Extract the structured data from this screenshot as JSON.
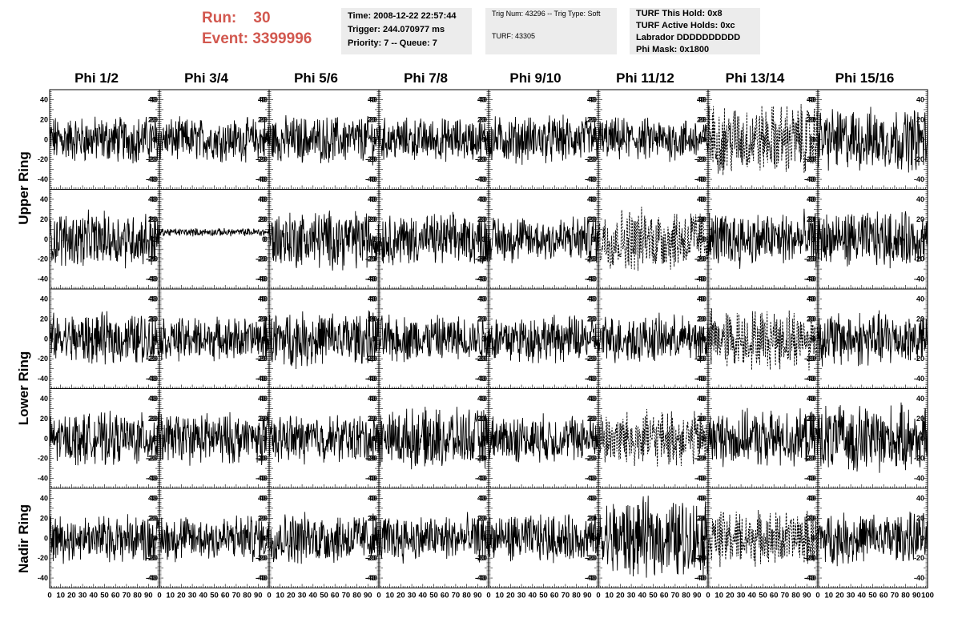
{
  "header": {
    "run_label": "Run:",
    "run_value": "30",
    "event_label": "Event:",
    "event_value": "3399996",
    "box1": [
      "Time: 2008-12-22 22:57:44",
      "Trigger: 244.070977 ms",
      "Priority: 7 -- Queue: 7"
    ],
    "box2_line1": "Trig Num: 43296 -- Trig Type: Soft",
    "box2_line2": "TURF: 43305",
    "box3": [
      "TURF This Hold: 0x8",
      "TURF Active Holds: 0xc",
      "Labrador DDDDDDDDDD",
      "Phi Mask: 0x1800"
    ]
  },
  "colors": {
    "accent": "#d2584f",
    "info_bg": "#ececec",
    "trace": "#000000"
  },
  "columns": [
    "Phi 1/2",
    "Phi 3/4",
    "Phi 5/6",
    "Phi 7/8",
    "Phi 9/10",
    "Phi 11/12",
    "Phi 13/14",
    "Phi 15/16"
  ],
  "ring_labels": [
    "Upper Ring",
    "Lower Ring",
    "Nadir Ring"
  ],
  "chart_data": {
    "type": "line",
    "layout": "5 rows x 8 columns of waveform panels",
    "columns": [
      "Phi 1/2",
      "Phi 3/4",
      "Phi 5/6",
      "Phi 7/8",
      "Phi 9/10",
      "Phi 11/12",
      "Phi 13/14",
      "Phi 15/16"
    ],
    "row_groups": [
      {
        "label": "Upper Ring",
        "rows": [
          0,
          1
        ]
      },
      {
        "label": "Lower Ring",
        "rows": [
          2,
          3
        ]
      },
      {
        "label": "Nadir Ring",
        "rows": [
          4
        ]
      }
    ],
    "xlim": [
      0,
      100
    ],
    "ylim": [
      -50,
      50
    ],
    "x_ticks": [
      0,
      10,
      20,
      30,
      40,
      50,
      60,
      70,
      80,
      90,
      100
    ],
    "y_ticks": [
      -40,
      -20,
      0,
      20,
      40
    ],
    "y_tick_labels": [
      "-40",
      "-20",
      "0",
      "20",
      "40"
    ],
    "n_points": 250,
    "panels": [
      [
        {
          "amp": 12,
          "style": "solid"
        },
        {
          "amp": 11,
          "style": "solid"
        },
        {
          "amp": 12,
          "style": "solid"
        },
        {
          "amp": 11,
          "style": "solid"
        },
        {
          "amp": 12,
          "style": "solid"
        },
        {
          "amp": 11,
          "style": "solid"
        },
        {
          "amp": 18,
          "style": "dashed"
        },
        {
          "amp": 16,
          "style": "solid"
        }
      ],
      [
        {
          "amp": 14,
          "style": "solid"
        },
        {
          "amp": 2,
          "style": "solid",
          "offset": 7
        },
        {
          "amp": 15,
          "style": "solid"
        },
        {
          "amp": 13,
          "style": "solid"
        },
        {
          "amp": 12,
          "style": "solid"
        },
        {
          "amp": 16,
          "style": "dashed"
        },
        {
          "amp": 14,
          "style": "solid"
        },
        {
          "amp": 14,
          "style": "solid"
        }
      ],
      [
        {
          "amp": 13,
          "style": "solid"
        },
        {
          "amp": 11,
          "style": "solid"
        },
        {
          "amp": 14,
          "style": "solid"
        },
        {
          "amp": 12,
          "style": "solid"
        },
        {
          "amp": 12,
          "style": "solid"
        },
        {
          "amp": 12,
          "style": "solid"
        },
        {
          "amp": 15,
          "style": "dashed"
        },
        {
          "amp": 14,
          "style": "solid"
        }
      ],
      [
        {
          "amp": 13,
          "style": "solid"
        },
        {
          "amp": 13,
          "style": "solid"
        },
        {
          "amp": 12,
          "style": "solid"
        },
        {
          "amp": 15,
          "style": "solid"
        },
        {
          "amp": 12,
          "style": "solid"
        },
        {
          "amp": 14,
          "style": "dashed"
        },
        {
          "amp": 14,
          "style": "solid"
        },
        {
          "amp": 17,
          "style": "solid"
        }
      ],
      [
        {
          "amp": 12,
          "style": "solid"
        },
        {
          "amp": 12,
          "style": "solid"
        },
        {
          "amp": 13,
          "style": "solid"
        },
        {
          "amp": 12,
          "style": "solid"
        },
        {
          "amp": 12,
          "style": "solid"
        },
        {
          "amp": 20,
          "style": "solid"
        },
        {
          "amp": 14,
          "style": "dashed"
        },
        {
          "amp": 13,
          "style": "solid"
        }
      ]
    ]
  }
}
